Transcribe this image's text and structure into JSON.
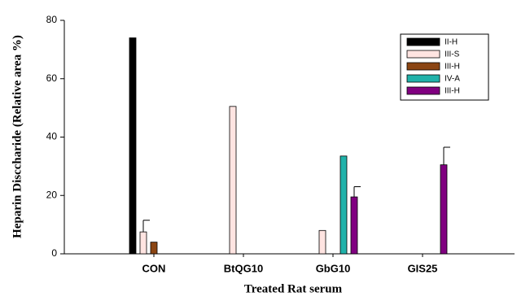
{
  "chart_data": {
    "type": "bar",
    "x_label": "Treated Rat serum",
    "y_label": "Heparin Disccharide (Relative area %)",
    "categories": [
      "CON",
      "BtQG10",
      "GbG10",
      "GIS25"
    ],
    "series": [
      {
        "name": "II-H",
        "color": "#000000",
        "values": [
          74,
          null,
          null,
          null
        ],
        "errors": [
          null,
          null,
          null,
          null
        ]
      },
      {
        "name": "III-S",
        "color": "#ffe4e1",
        "values": [
          7.5,
          50.5,
          8,
          null
        ],
        "errors": [
          4,
          null,
          null,
          null
        ]
      },
      {
        "name": "III-H",
        "color": "#8b4513",
        "values": [
          4,
          null,
          null,
          null
        ],
        "errors": [
          null,
          null,
          null,
          null
        ]
      },
      {
        "name": "IV-A",
        "color": "#20b2aa",
        "values": [
          null,
          null,
          33.5,
          null
        ],
        "errors": [
          null,
          null,
          null,
          null
        ]
      },
      {
        "name": "III-H",
        "color": "#800080",
        "values": [
          null,
          null,
          19.5,
          30.5
        ],
        "errors": [
          null,
          null,
          3.5,
          6
        ]
      }
    ],
    "ylim": [
      0,
      80
    ],
    "yticks": [
      0,
      20,
      40,
      60,
      80
    ],
    "legend": "upper right"
  }
}
